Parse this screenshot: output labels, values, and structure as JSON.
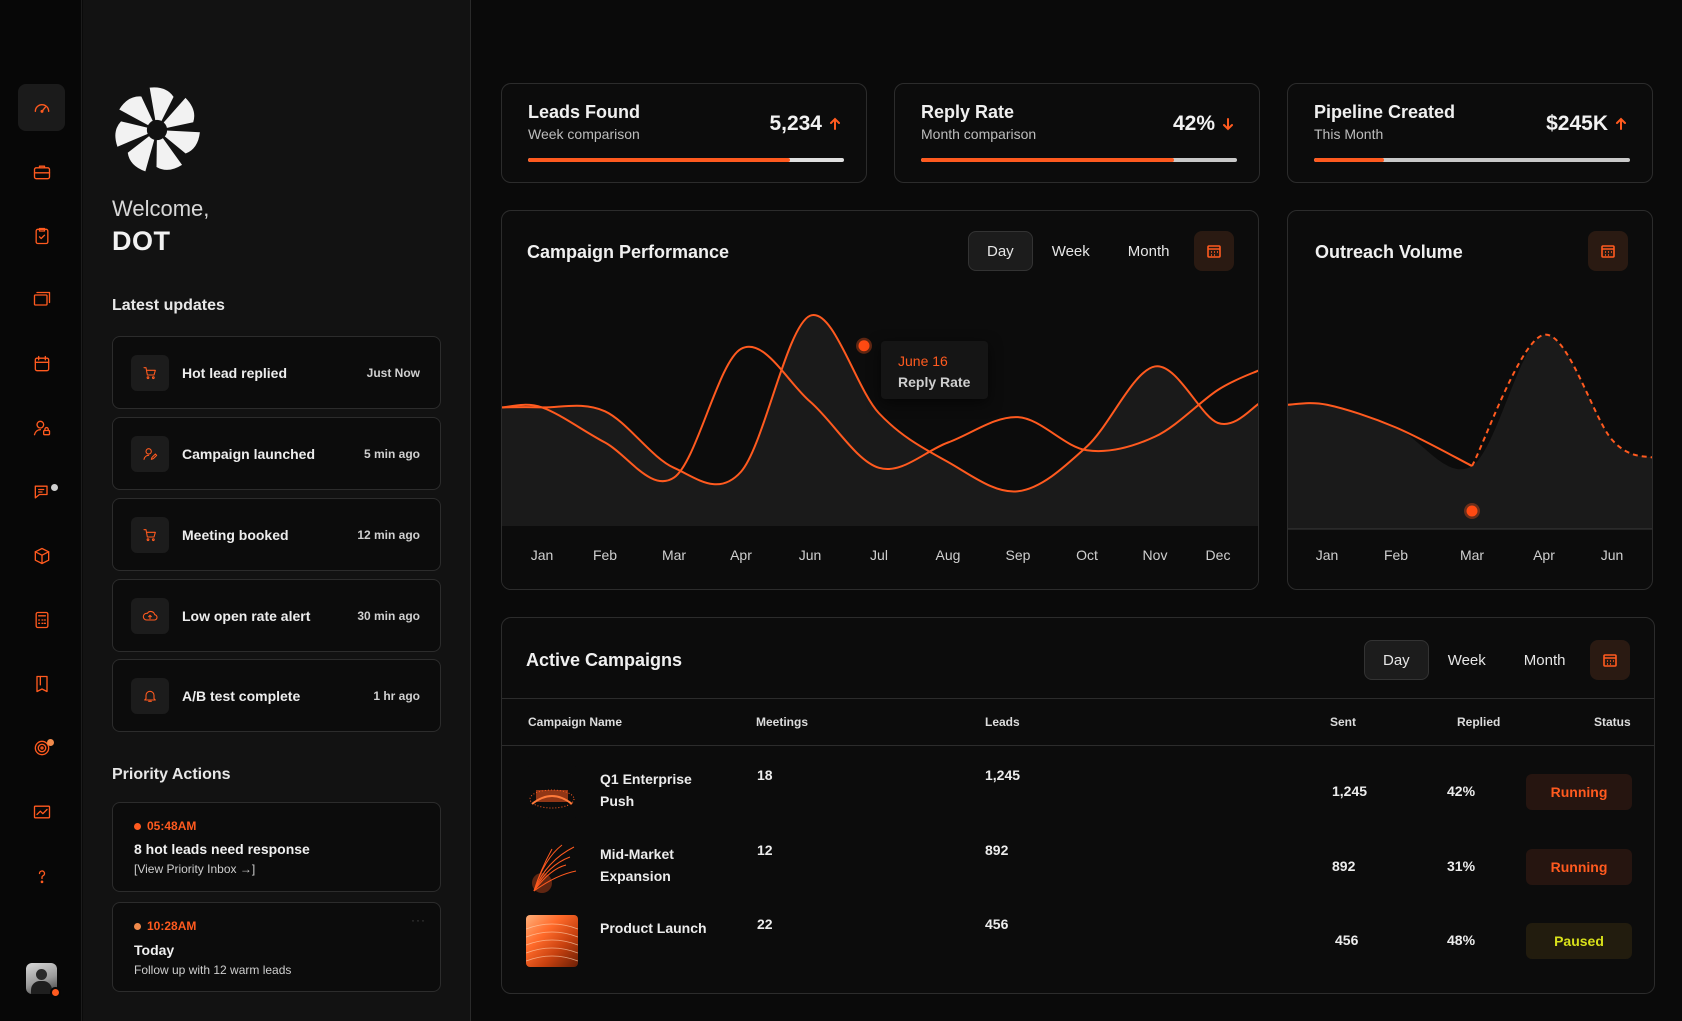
{
  "sidebar": {
    "welcome": "Welcome,",
    "user_name": "DOT",
    "latest_updates_title": "Latest updates",
    "updates": [
      {
        "label": "Hot lead replied",
        "time": "Just Now",
        "icon": "cart-icon"
      },
      {
        "label": "Campaign launched",
        "time": "5 min ago",
        "icon": "user-edit-icon"
      },
      {
        "label": "Meeting booked",
        "time": "12 min ago",
        "icon": "cart-icon"
      },
      {
        "label": "Low open rate alert",
        "time": "30 min ago",
        "icon": "cloud-upload-icon"
      },
      {
        "label": "A/B test complete",
        "time": "1 hr ago",
        "icon": "bell-icon"
      }
    ],
    "priority_title": "Priority Actions",
    "priority": [
      {
        "time": "05:48AM",
        "title": "8 hot leads need response",
        "sub": "[View Priority Inbox →]",
        "dot_color": "#ff5a1f"
      },
      {
        "time": "10:28AM",
        "title": "Today",
        "sub": "Follow up with 12 warm leads",
        "dot_color": "#f08a4b",
        "more": "···"
      }
    ]
  },
  "rail": {
    "items": [
      "dashboard-icon",
      "briefcase-icon",
      "clipboard-check-icon",
      "layers-icon",
      "calendar-icon",
      "user-lock-icon",
      "chat-icon",
      "box-icon",
      "calculator-icon",
      "book-icon",
      "target-icon",
      "chart-icon",
      "help-icon"
    ],
    "accent": "#ff5a1f"
  },
  "kpis": [
    {
      "title": "Leads Found",
      "sub": "Week comparison",
      "value": "5,234",
      "trend": "up",
      "progress": 0.83
    },
    {
      "title": "Reply Rate",
      "sub": "Month comparison",
      "value": "42%",
      "trend": "down",
      "progress": 0.8
    },
    {
      "title": "Pipeline Created",
      "sub": "This Month",
      "value": "$245K",
      "trend": "up",
      "progress": 0.22
    }
  ],
  "campaign_performance": {
    "title": "Campaign Performance",
    "range_options": [
      "Day",
      "Week",
      "Month"
    ],
    "selected_range": "Day",
    "tooltip": {
      "date": "June 16",
      "metric": "Reply Rate"
    }
  },
  "outreach_volume": {
    "title": "Outreach Volume"
  },
  "active_campaigns": {
    "title": "Active Campaigns",
    "range_options": [
      "Day",
      "Week",
      "Month"
    ],
    "selected_range": "Day",
    "columns": [
      "Campaign Name",
      "Meetings",
      "Leads",
      "Sent",
      "Replied",
      "Status"
    ],
    "rows": [
      {
        "name": "Q1 Enterprise Push",
        "meetings": "18",
        "leads": "1,245",
        "sent": "1,245",
        "replied": "42%",
        "status": "Running"
      },
      {
        "name": "Mid-Market Expansion",
        "meetings": "12",
        "leads": "892",
        "sent": "892",
        "replied": "31%",
        "status": "Running"
      },
      {
        "name": "Product Launch",
        "meetings": "22",
        "leads": "456",
        "sent": "456",
        "replied": "48%",
        "status": "Paused"
      }
    ]
  },
  "chart_data": [
    {
      "type": "line",
      "title": "Campaign Performance",
      "categories": [
        "Jan",
        "Feb",
        "Mar",
        "Apr",
        "Jun",
        "Jul",
        "Aug",
        "Sep",
        "Oct",
        "Nov",
        "Dec"
      ],
      "series": [
        {
          "values": [
            0.48,
            0.3,
            0.12,
            0.78,
            0.51,
            0.17,
            0.3,
            0.43,
            0.26,
            0.33,
            0.57
          ]
        },
        {
          "values": [
            0.48,
            0.46,
            0.17,
            0.15,
            0.95,
            0.45,
            0.2,
            0.05,
            0.28,
            0.69,
            0.4
          ]
        }
      ],
      "highlight": {
        "category": "Jun",
        "series": 1
      },
      "grid": false,
      "legend": "none"
    },
    {
      "type": "line",
      "title": "Outreach Volume",
      "categories": [
        "Jan",
        "Feb",
        "Mar",
        "Apr",
        "Jun"
      ],
      "series": [
        {
          "values": [
            0.55,
            0.42,
            0.2,
            0.95,
            0.35
          ]
        }
      ],
      "highlight": {
        "category": "Mar",
        "series": 0
      },
      "grid": false,
      "legend": "none"
    }
  ]
}
